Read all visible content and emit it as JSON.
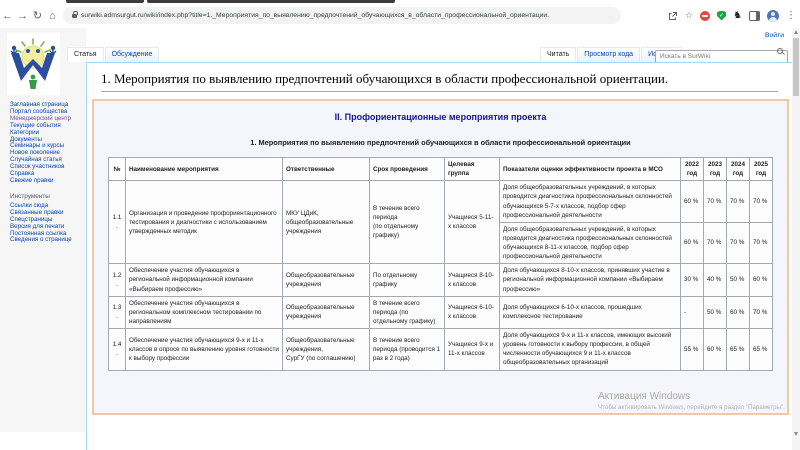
{
  "browser": {
    "url": "surwiki.admsurgut.ru/wiki/index.php?title=1._Мероприятия_по_выявлению_предпочтений_обучающихся_в_области_профессиональной_ориентации.",
    "icons": {
      "back": "←",
      "forward": "→",
      "reload": "↻",
      "home": "⌂",
      "extension_dark": "♞",
      "shield_check": "✓",
      "star": "☆",
      "menu": "⋮"
    }
  },
  "wiki": {
    "login_label": "Войти",
    "tabs_left": [
      {
        "label": "Статья",
        "active": true
      },
      {
        "label": "Обсуждение",
        "active": false
      }
    ],
    "tabs_right": [
      {
        "label": "Читать",
        "active": true
      },
      {
        "label": "Просмотр кода",
        "active": false
      },
      {
        "label": "История",
        "active": false
      }
    ],
    "search_placeholder": "Искать в SurWiki",
    "page_title": "1. Мероприятия по выявлению предпочтений обучающихся в области профессиональной ориентации.",
    "sidebar": {
      "main_items": [
        {
          "label": "Заглавная страница",
          "visited": false
        },
        {
          "label": "Портал сообщества",
          "visited": false
        },
        {
          "label": "Менеджерский центр",
          "visited": true
        },
        {
          "label": "Текущие события",
          "visited": false
        },
        {
          "label": "Категории",
          "visited": false
        },
        {
          "label": "Документы",
          "visited": false
        },
        {
          "label": "Семинары и курсы",
          "visited": false
        },
        {
          "label": "Новое поколение",
          "visited": false
        },
        {
          "label": "Случайная статья",
          "visited": false
        },
        {
          "label": "Список участников",
          "visited": false
        },
        {
          "label": "Справка",
          "visited": false
        },
        {
          "label": "Свежие правки",
          "visited": false
        }
      ],
      "tools_header": "Инструменты",
      "tools_items": [
        {
          "label": "Ссылки сюда",
          "visited": false
        },
        {
          "label": "Связанные правки",
          "visited": false
        },
        {
          "label": "Спецстраницы",
          "visited": false
        },
        {
          "label": "Версия для печати",
          "visited": false
        },
        {
          "label": "Постоянная ссылка",
          "visited": false
        },
        {
          "label": "Сведения о странице",
          "visited": false
        }
      ]
    },
    "box": {
      "heading": "II. Профориентационные мероприятия проекта",
      "subtitle": "1. Мероприятия по выявлению предпочтений обучающихся в области профессиональной ориентации",
      "table": {
        "headers": [
          "№",
          "Наименование мероприятия",
          "Ответственные",
          "Срок проведения",
          "Целевая группа",
          "Показатели оценки эффективности проекта в МСО",
          "2022 год",
          "2023 год",
          "2024 год",
          "2025 год"
        ],
        "rows": [
          {
            "num": "1.1.",
            "name": "Организация и проведение профориентационного тестирования и диагностики с использованием утвержденных методик",
            "responsible": "МКУ ЦДиК,\nобщеобразовательные учреждения",
            "period": "В течение всего периода\n(по отдельному графику)",
            "target": "Учащиеся 5-11-х классов",
            "indicators": [
              {
                "text": "Доля общеобразовательных учреждений, в которых проводится диагностика профессиональных склонностей обучающихся 5-7-х классов, подбор сфер профессиональной деятельности",
                "values": [
                  "60 %",
                  "70 %",
                  "70 %",
                  "70 %"
                ]
              },
              {
                "text": "Доля общеобразовательных учреждений, в которых проводится диагностика профессиональных склонностей обучающихся 8-11-х классов, подбор сфер профессиональной деятельности",
                "values": [
                  "60 %",
                  "70 %",
                  "70 %",
                  "70 %"
                ]
              }
            ]
          },
          {
            "num": "1.2.",
            "name": "Обеспечение участия обучающихся в региональной информационной компании «Выбираем профессию»",
            "responsible": "Общеобразовательные учреждения",
            "period": "По отдельному графику",
            "target": "Учащиеся 8-10-х классов",
            "indicators": [
              {
                "text": "Доля обучающихся 8-10-х классов, принявших участие в региональной информационной компании «Выбираем профессию»",
                "values": [
                  "30 %",
                  "40 %",
                  "50 %",
                  "60 %"
                ]
              }
            ]
          },
          {
            "num": "1.3.",
            "name": "Обеспечение участия обучающихся в региональном комплексном тестировании по направлениям",
            "responsible": "Общеобразовательные учреждения",
            "period": "В течение всего периода (по отдельному графику)",
            "target": "Учащиеся 6-10-х классов",
            "indicators": [
              {
                "text": "Доля обучающихся 6-10-х классов, прошедших комплексное тестирование",
                "values": [
                  "-",
                  "50 %",
                  "60 %",
                  "70 %"
                ]
              }
            ]
          },
          {
            "num": "1.4.",
            "name": "Обеспечение участия обучающихся 9-х и 11-х классов в опросе по выявлению уровня готовности к выбору профессии",
            "responsible": "Общеобразовательные учреждения,\nСурГУ (по соглашению)",
            "period": "В течение всего периода (проводится 1 раз в 2 года)",
            "target": "Учащиеся 9-х и 11-х классов",
            "indicators": [
              {
                "text": "Доля обучающихся 9-х и 11-х классов, имеющих высокий уровень готовности к выбору профессии, в общей численности обучающихся 9 и 11-х классов общеобразовательных организаций",
                "values": [
                  "55 %",
                  "60 %",
                  "65 %",
                  "65 %"
                ]
              }
            ]
          }
        ]
      }
    },
    "watermark": {
      "line1": "Активация Windows",
      "line2": "Чтобы активировать Windows, перейдите в раздел \"Параметры\"."
    },
    "colors": {
      "box_border": "#f3c9a0",
      "box_background": "#f5f6fb",
      "heading_navy": "#14149c",
      "link_blue": "#0645ad",
      "table_border": "#a2a9b1"
    }
  }
}
